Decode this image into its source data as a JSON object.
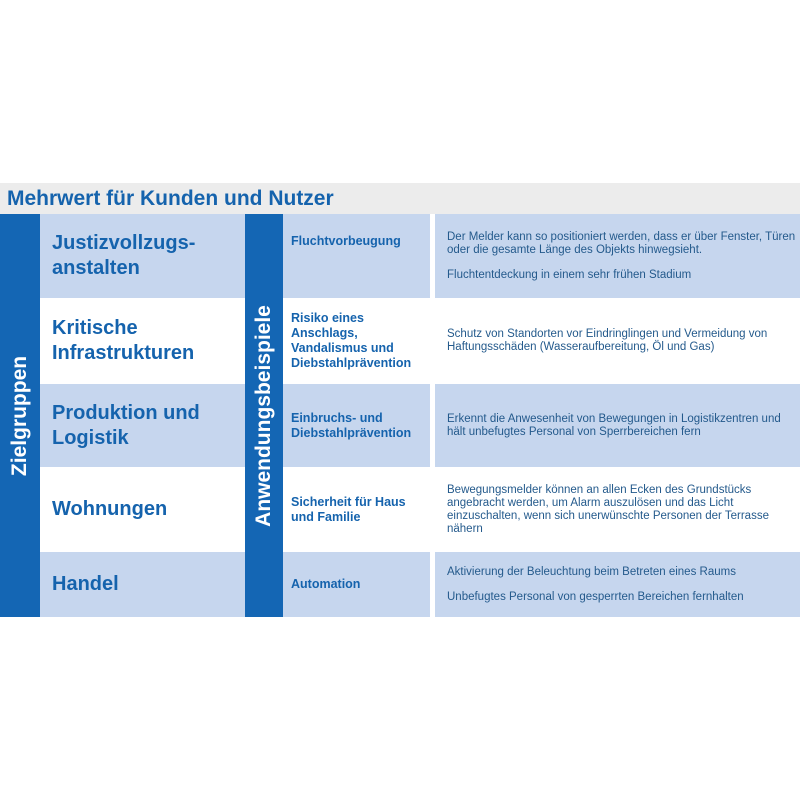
{
  "title": "Mehrwert für Kunden und Nutzer",
  "left_bar_label": "Zielgruppen",
  "middle_bar_label": "Anwendungsbeispiele",
  "colors": {
    "bar": "#1466b4",
    "shade": "#c6d6ee",
    "header": "#ececec",
    "text": "#1563ad"
  },
  "rows": [
    {
      "group": "Justizvollzugs-\nanstalten",
      "example": "Fluchtvorbeugung",
      "benefits": [
        "Der Melder kann so positioniert werden, dass er über Fenster, Türen oder die gesamte Länge des Objekts hinwegsieht.",
        "Fluchtentdeckung in einem sehr frühen Stadium"
      ]
    },
    {
      "group": "Kritische Infrastrukturen",
      "example": "Risiko eines Anschlags, Vandalismus und Diebstahlprävention",
      "benefits": [
        "Schutz von Standorten vor Eindringlingen und Vermeidung von Haftungsschäden (Wasseraufbereitung, Öl und Gas)"
      ]
    },
    {
      "group": "Produktion und Logistik",
      "example": "Einbruchs- und Diebstahlprävention",
      "benefits": [
        "Erkennt die Anwesenheit von Bewegungen in Logistikzentren und hält unbefugtes Personal von Sperrbereichen fern"
      ]
    },
    {
      "group": "Wohnungen",
      "example": "Sicherheit für Haus und Familie",
      "benefits": [
        "Bewegungsmelder können an allen Ecken des Grundstücks angebracht werden, um Alarm auszulösen und das Licht einzuschalten, wenn sich unerwünschte Personen der Terrasse nähern"
      ]
    },
    {
      "group": "Handel",
      "example": "Automation",
      "benefits": [
        "Aktivierung der Beleuchtung beim Betreten eines Raums",
        "Unbefugtes Personal von gesperrten Bereichen fernhalten"
      ]
    }
  ]
}
